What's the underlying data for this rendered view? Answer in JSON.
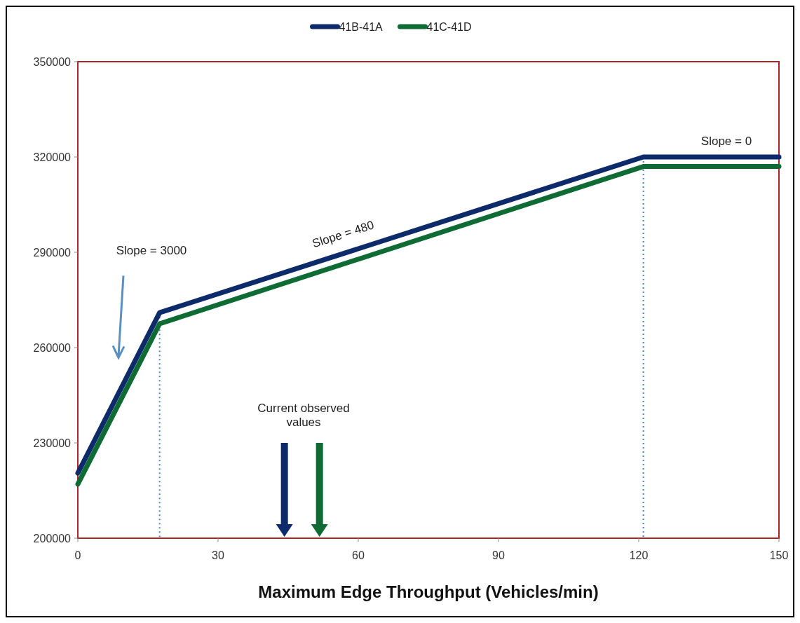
{
  "chart_data": {
    "type": "line",
    "xlabel": "Maximum Edge Throughput (Vehicles/min)",
    "x": [
      0,
      17.5,
      121,
      150
    ],
    "series": [
      {
        "name": "41B-41A",
        "color": "#0d2a6b",
        "values": [
          220500,
          271000,
          320000,
          320000
        ]
      },
      {
        "name": "41C-41D",
        "color": "#0f6b34",
        "values": [
          217000,
          267500,
          317000,
          317000
        ]
      }
    ],
    "xlim": [
      0,
      150
    ],
    "xticks": [
      0,
      30,
      60,
      90,
      120,
      150
    ],
    "ylim": [
      200000,
      350000
    ],
    "yticks": [
      200000,
      230000,
      260000,
      290000,
      320000,
      350000
    ],
    "legend": "top",
    "grid": false,
    "marker": "none",
    "line_style": "solid",
    "ref_lines": [
      {
        "axis": "x",
        "value": 17.5,
        "color": "#4f81bd",
        "line_style": "dotted"
      },
      {
        "axis": "x",
        "value": 121,
        "color": "#4f81bd",
        "line_style": "dotted"
      },
      {
        "axis": "x",
        "value": 44.2,
        "color": "#0d2a6b"
      },
      {
        "axis": "x",
        "value": 51.7,
        "color": "#0f6b34"
      }
    ],
    "annotations": [
      "Slope = 3000",
      "Slope = 480",
      "Slope = 0",
      "Current observed values"
    ]
  }
}
